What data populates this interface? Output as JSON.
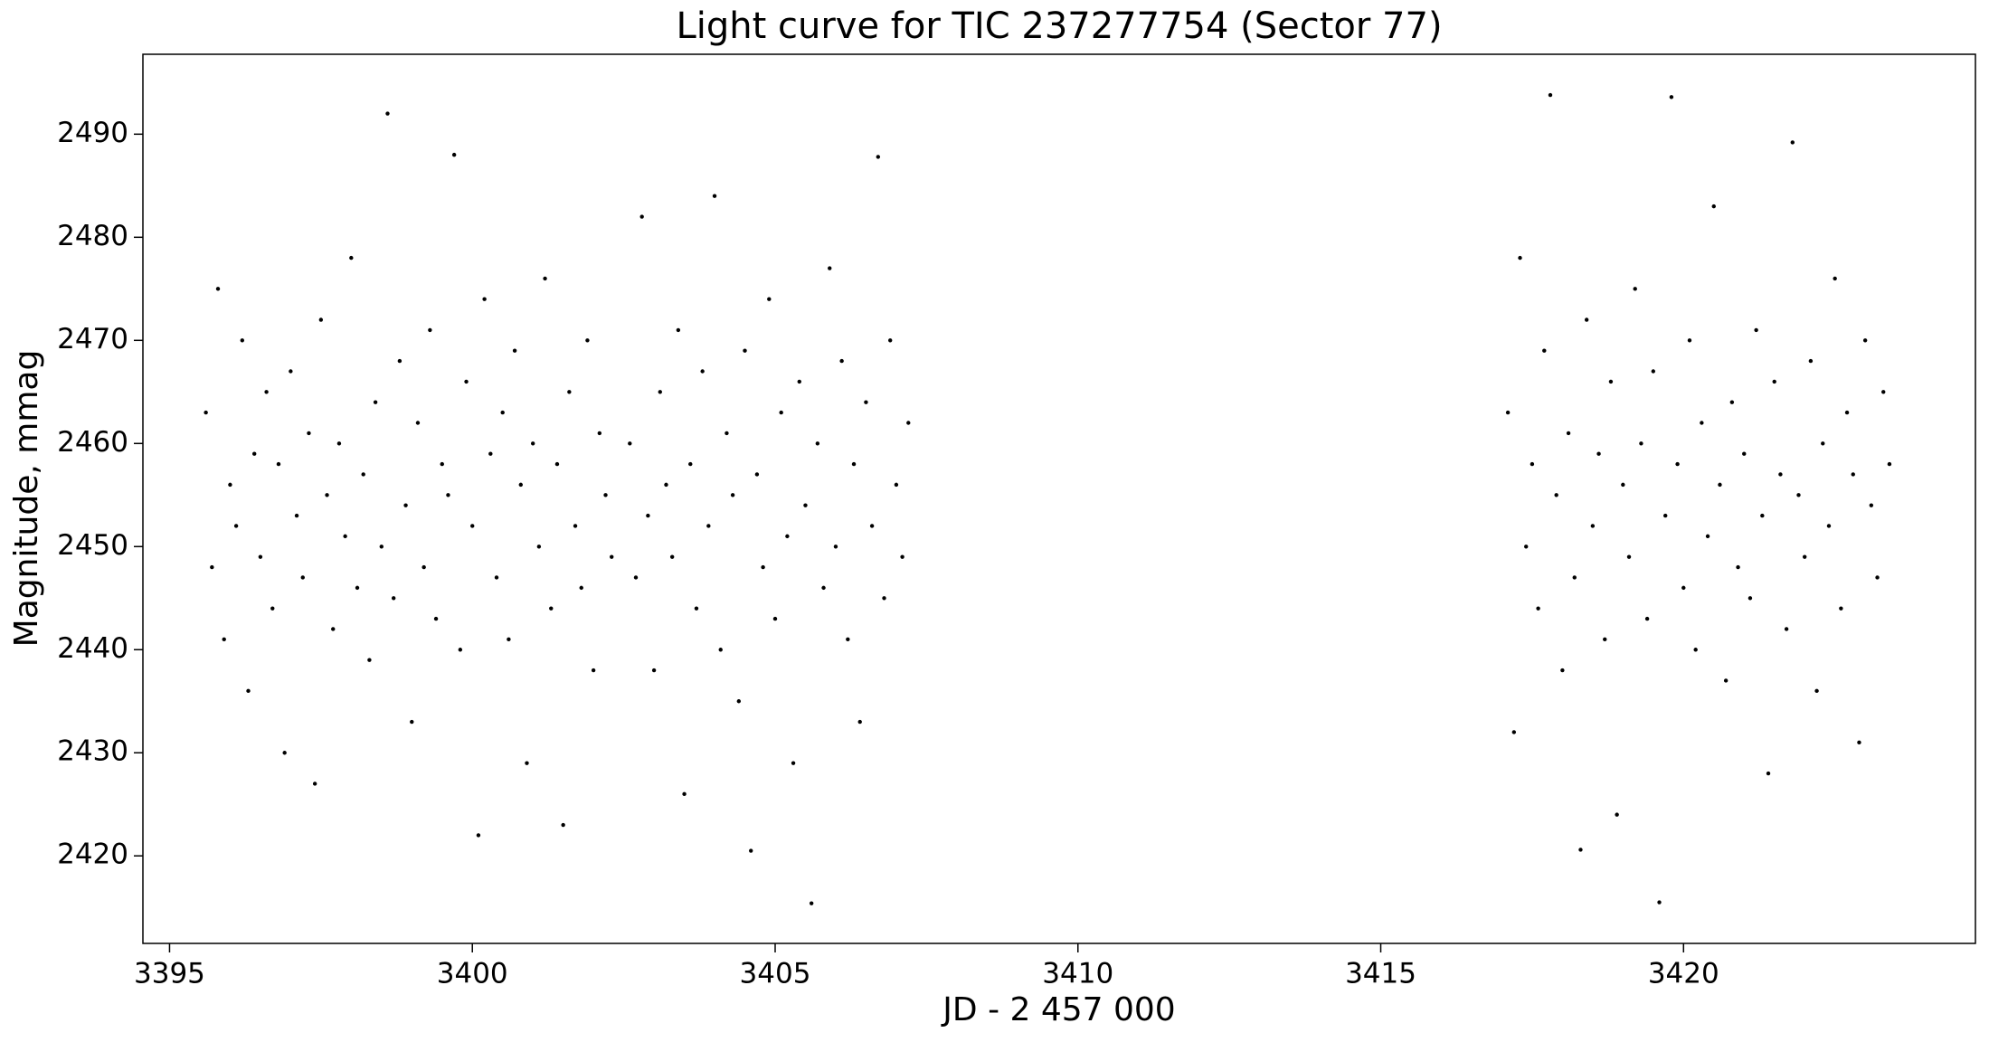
{
  "chart_data": {
    "type": "scatter",
    "title": "Light curve for TIC 237277754 (Sector 77)",
    "x_label": "JD - 2 457 000",
    "y_label": "Magnitude, mmag",
    "color": "#000000",
    "xlim": [
      3394.56,
      3424.82
    ],
    "ylim": [
      2411.51,
      2497.75
    ],
    "xticks": [
      3395,
      3400,
      3405,
      3410,
      3415,
      3420
    ],
    "yticks": [
      2420,
      2430,
      2440,
      2450,
      2460,
      2470,
      2480,
      2490
    ],
    "x": [
      3395.6,
      3395.7,
      3395.8,
      3395.9,
      3396.0,
      3396.1,
      3396.2,
      3396.3,
      3396.4,
      3396.5,
      3396.6,
      3396.7,
      3396.8,
      3396.9,
      3397.0,
      3397.1,
      3397.2,
      3397.3,
      3397.4,
      3397.5,
      3397.6,
      3397.7,
      3397.8,
      3397.9,
      3398.0,
      3398.1,
      3398.2,
      3398.3,
      3398.4,
      3398.5,
      3398.6,
      3398.7,
      3398.8,
      3398.9,
      3399.0,
      3399.1,
      3399.2,
      3399.3,
      3399.4,
      3399.5,
      3399.6,
      3399.7,
      3399.8,
      3399.9,
      3400.0,
      3400.1,
      3400.2,
      3400.3,
      3400.4,
      3400.5,
      3400.6,
      3400.7,
      3400.8,
      3400.9,
      3401.0,
      3401.1,
      3401.2,
      3401.3,
      3401.4,
      3401.5,
      3401.6,
      3401.7,
      3401.8,
      3401.9,
      3402.0,
      3402.1,
      3402.2,
      3402.3,
      3402.6,
      3402.7,
      3402.8,
      3402.9,
      3403.0,
      3403.1,
      3403.2,
      3403.3,
      3403.4,
      3403.5,
      3403.6,
      3403.7,
      3403.8,
      3403.9,
      3404.0,
      3404.1,
      3404.2,
      3404.3,
      3404.4,
      3404.5,
      3404.6,
      3404.7,
      3404.8,
      3404.9,
      3405.0,
      3405.1,
      3405.2,
      3405.3,
      3405.4,
      3405.5,
      3405.6,
      3405.7,
      3405.8,
      3405.9,
      3406.0,
      3406.1,
      3406.2,
      3406.3,
      3406.4,
      3406.5,
      3406.6,
      3406.7,
      3406.8,
      3406.9,
      3407.0,
      3407.1,
      3407.2,
      3417.1,
      3417.2,
      3417.3,
      3417.4,
      3417.5,
      3417.6,
      3417.7,
      3417.8,
      3417.9,
      3418.0,
      3418.1,
      3418.2,
      3418.3,
      3418.4,
      3418.5,
      3418.6,
      3418.7,
      3418.8,
      3418.9,
      3419.0,
      3419.1,
      3419.2,
      3419.3,
      3419.4,
      3419.5,
      3419.6,
      3419.7,
      3419.8,
      3419.9,
      3420.0,
      3420.1,
      3420.2,
      3420.3,
      3420.4,
      3420.5,
      3420.6,
      3420.7,
      3420.8,
      3420.9,
      3421.0,
      3421.1,
      3421.2,
      3421.3,
      3421.4,
      3421.5,
      3421.6,
      3421.7,
      3421.8,
      3421.9,
      3422.0,
      3422.1,
      3422.2,
      3422.3,
      3422.4,
      3422.5,
      3422.6,
      3422.7,
      3422.8,
      3422.9,
      3423.0,
      3423.1,
      3423.2,
      3423.3,
      3423.4
    ],
    "values": [
      2463,
      2448,
      2475,
      2441,
      2456,
      2452,
      2470,
      2436,
      2459,
      2449,
      2465,
      2444,
      2458,
      2430,
      2467,
      2453,
      2447,
      2461,
      2427,
      2472,
      2455,
      2442,
      2460,
      2451,
      2478,
      2446,
      2457,
      2439,
      2464,
      2450,
      2492,
      2445,
      2468,
      2454,
      2433,
      2462,
      2448,
      2471,
      2443,
      2458,
      2455,
      2488,
      2440,
      2466,
      2452,
      2422,
      2474,
      2459,
      2447,
      2463,
      2441,
      2469,
      2456,
      2429,
      2460,
      2450,
      2476,
      2444,
      2458,
      2423,
      2465,
      2452,
      2446,
      2470,
      2438,
      2461,
      2455,
      2449,
      2460,
      2447,
      2482,
      2453,
      2438,
      2465,
      2456,
      2449,
      2471,
      2426,
      2458,
      2444,
      2467,
      2452,
      2484,
      2440,
      2461,
      2455,
      2435,
      2469,
      2420.5,
      2457,
      2448,
      2474,
      2443,
      2463,
      2451,
      2429,
      2466,
      2454,
      2415.4,
      2460,
      2446,
      2477,
      2450,
      2468,
      2441,
      2458,
      2433,
      2464,
      2452,
      2487.8,
      2445,
      2470,
      2456,
      2449,
      2462,
      2463,
      2432,
      2478,
      2450,
      2458,
      2444,
      2469,
      2493.8,
      2455,
      2438,
      2461,
      2447,
      2420.6,
      2472,
      2452,
      2459,
      2441,
      2466,
      2424,
      2456,
      2449,
      2475,
      2460,
      2443,
      2467,
      2415.5,
      2453,
      2493.6,
      2458,
      2446,
      2470,
      2440,
      2462,
      2451,
      2483,
      2456,
      2437,
      2464,
      2448,
      2459,
      2445,
      2471,
      2453,
      2428,
      2466,
      2457,
      2442,
      2489.2,
      2455,
      2449,
      2468,
      2436,
      2460,
      2452,
      2476,
      2444,
      2463,
      2457,
      2431,
      2470,
      2454,
      2447,
      2465,
      2458
    ]
  }
}
